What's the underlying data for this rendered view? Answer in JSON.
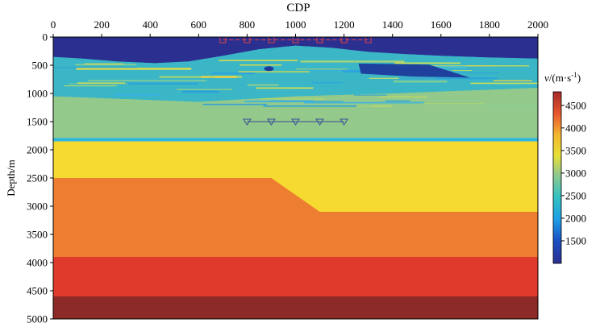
{
  "chart_data": {
    "type": "heatmap",
    "title": "",
    "xlabel": "CDP",
    "ylabel": "Depth/m",
    "xlim": [
      0,
      2000
    ],
    "ylim": [
      0,
      5000
    ],
    "y_inverted": true,
    "x_ticks": [
      "0",
      "200",
      "400",
      "600",
      "800",
      "1000",
      "1200",
      "1400",
      "1600",
      "1800",
      "2000"
    ],
    "y_ticks": [
      "0",
      "500",
      "1000",
      "1500",
      "2000",
      "2500",
      "3000",
      "3500",
      "4000",
      "4500",
      "5000"
    ],
    "colorbar": {
      "label": "v/(m·s⁻¹)",
      "label_unit_parts": [
        "v",
        "/(m·s",
        "-1",
        ")"
      ],
      "range": [
        1000,
        4800
      ],
      "ticks": [
        "1500",
        "2000",
        "2500",
        "3000",
        "3500",
        "4000",
        "4500"
      ],
      "tick_values": [
        1500,
        2000,
        2500,
        3000,
        3500,
        4000,
        4500
      ],
      "colormap": "jet"
    },
    "layers": [
      {
        "velocity": 1500,
        "top_depth": 0,
        "description": "water"
      },
      {
        "velocity_range": [
          1500,
          3500
        ],
        "top_depth": 300,
        "bottom_depth": 1250,
        "description": "heterogeneous shallow zone"
      },
      {
        "velocity": 3050,
        "top_depth": 1250,
        "bottom_depth": 1800
      },
      {
        "velocity": 2200,
        "top_depth": 1800,
        "bottom_depth": 1850
      },
      {
        "velocity": 3650,
        "top_depth": 1850,
        "bottom_boundary": [
          [
            0,
            2500
          ],
          [
            900,
            2500
          ],
          [
            1100,
            3100
          ],
          [
            2000,
            3100
          ]
        ]
      },
      {
        "velocity": 4100,
        "bottom_depth": 3900
      },
      {
        "velocity": 4450,
        "top_depth": 3900,
        "bottom_depth": 4600
      },
      {
        "velocity": 4800,
        "top_depth": 4600,
        "bottom_depth": 5000
      }
    ],
    "sources": [
      {
        "cdp": 700,
        "depth": 50
      },
      {
        "cdp": 800,
        "depth": 50
      },
      {
        "cdp": 900,
        "depth": 50
      },
      {
        "cdp": 1000,
        "depth": 50
      },
      {
        "cdp": 1100,
        "depth": 50
      },
      {
        "cdp": 1200,
        "depth": 50
      },
      {
        "cdp": 1300,
        "depth": 50
      }
    ],
    "receivers": [
      {
        "cdp": 800,
        "depth": 1500
      },
      {
        "cdp": 900,
        "depth": 1500
      },
      {
        "cdp": 1000,
        "depth": 1500
      },
      {
        "cdp": 1100,
        "depth": 1500
      },
      {
        "cdp": 1200,
        "depth": 1500
      }
    ]
  },
  "colors": {
    "water": "#2b2f8f",
    "dark_blue": "#1e3a9a",
    "green_layer": "#93c98b",
    "cyan_line": "#2fb5e0",
    "yellow": "#f6da31",
    "orange": "#ed7d31",
    "red": "#e03a2c",
    "brown": "#8b2a26",
    "source_marker": "#e0404a",
    "receiver_marker": "#3a4a9a"
  }
}
